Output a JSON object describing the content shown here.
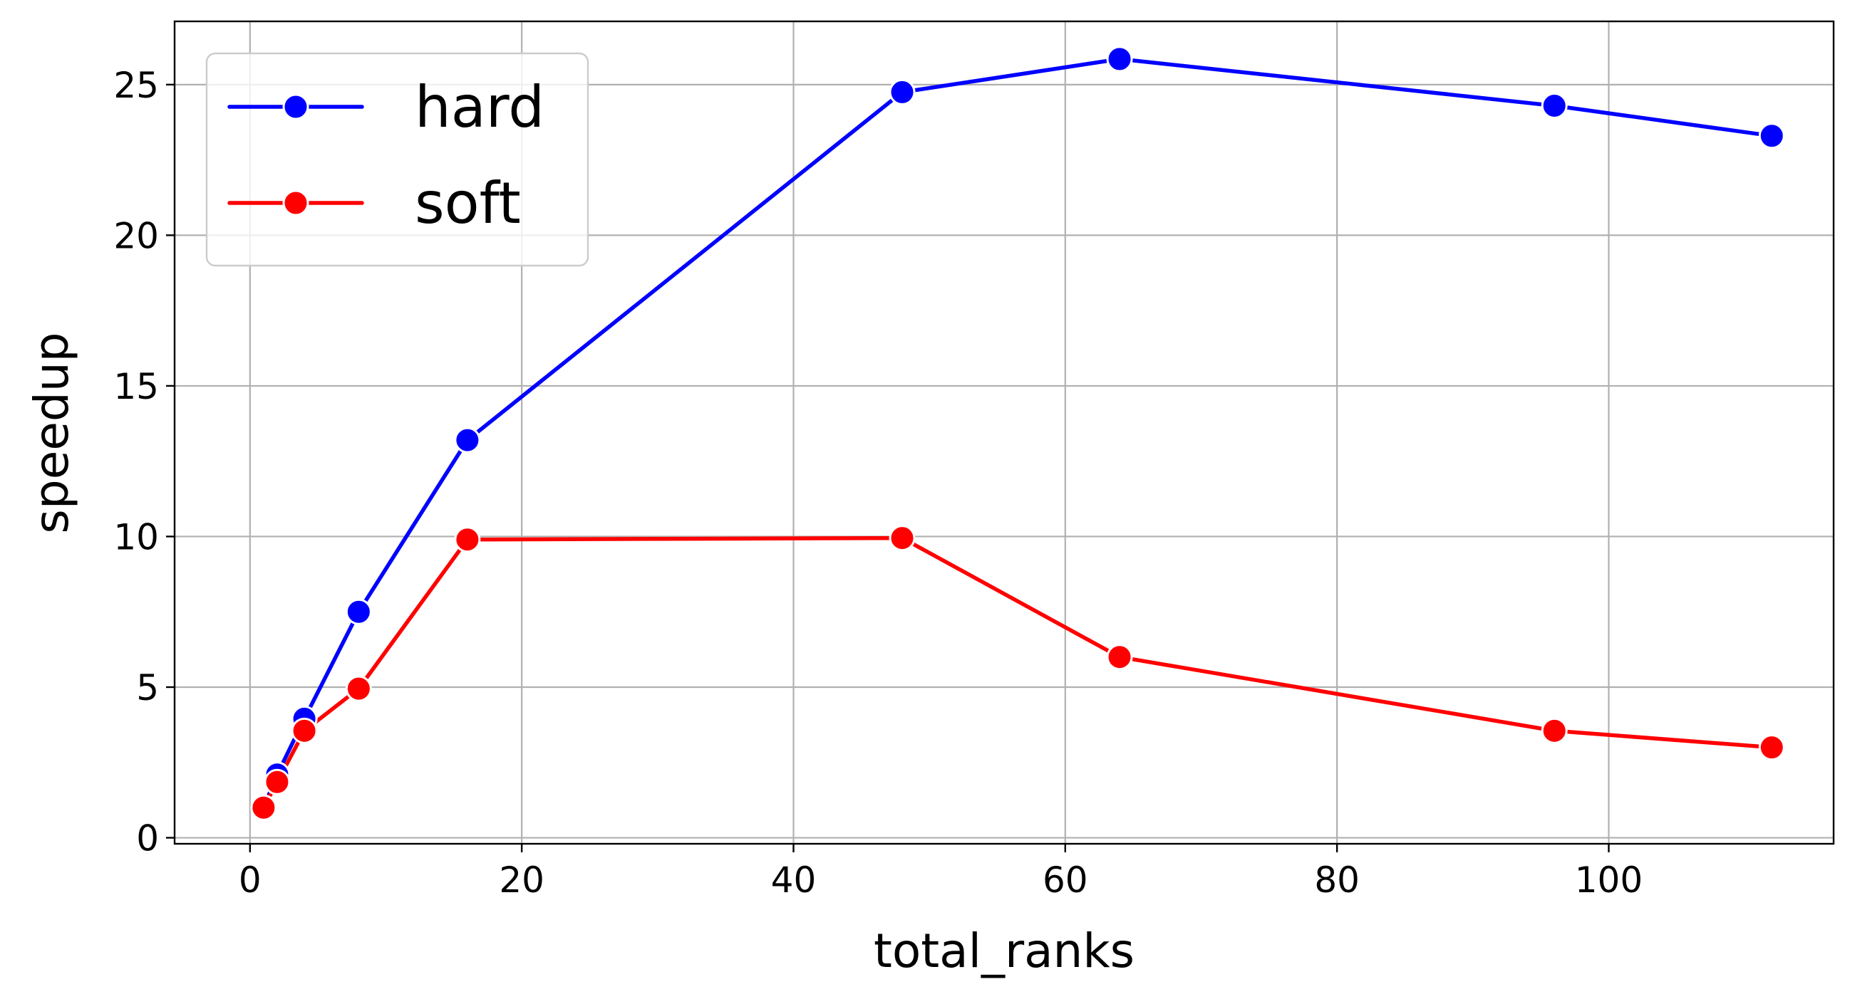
{
  "chart_data": {
    "type": "line",
    "title": "",
    "xlabel": "total_ranks",
    "ylabel": "speedup",
    "xlim": [
      -5.55,
      116.55
    ],
    "ylim": [
      -0.2,
      27.1
    ],
    "xticks": [
      0,
      20,
      40,
      60,
      80,
      100
    ],
    "yticks": [
      0,
      5,
      10,
      15,
      20,
      25
    ],
    "grid": true,
    "legend_position": "upper-left",
    "series": [
      {
        "name": "hard",
        "color": "#0000ff",
        "marker": "circle",
        "x": [
          1,
          2,
          4,
          8,
          16,
          48,
          64,
          96,
          112
        ],
        "y": [
          1.0,
          2.1,
          3.95,
          7.5,
          13.2,
          24.75,
          25.85,
          24.3,
          23.3
        ]
      },
      {
        "name": "soft",
        "color": "#ff0000",
        "marker": "circle",
        "x": [
          1,
          2,
          4,
          8,
          16,
          48,
          64,
          96,
          112
        ],
        "y": [
          1.0,
          1.85,
          3.55,
          4.95,
          9.9,
          9.95,
          6.0,
          3.55,
          3.0
        ]
      }
    ]
  }
}
